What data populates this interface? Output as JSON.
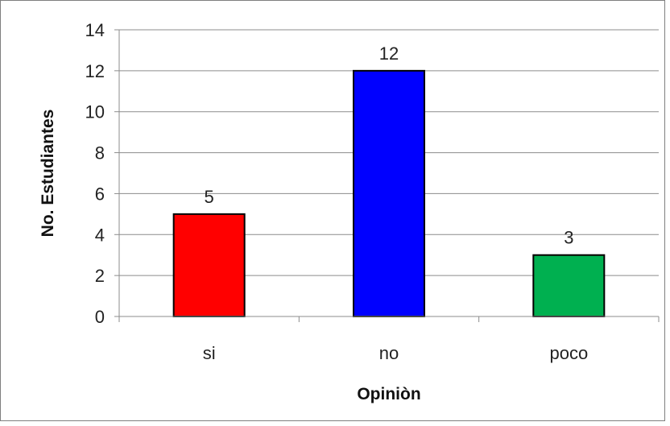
{
  "chart_data": {
    "type": "bar",
    "title": "",
    "xlabel": "Opiniòn",
    "ylabel": "No. Estudiantes",
    "categories": [
      "si",
      "no",
      "poco"
    ],
    "values": [
      5,
      12,
      3
    ],
    "data_labels": [
      "5",
      "12",
      "3"
    ],
    "bar_colors": [
      "#ff0000",
      "#0000ff",
      "#00b050"
    ],
    "ylim": [
      0,
      14
    ],
    "yticks": [
      0,
      2,
      4,
      6,
      8,
      10,
      12,
      14
    ],
    "grid": true,
    "legend": "none"
  }
}
